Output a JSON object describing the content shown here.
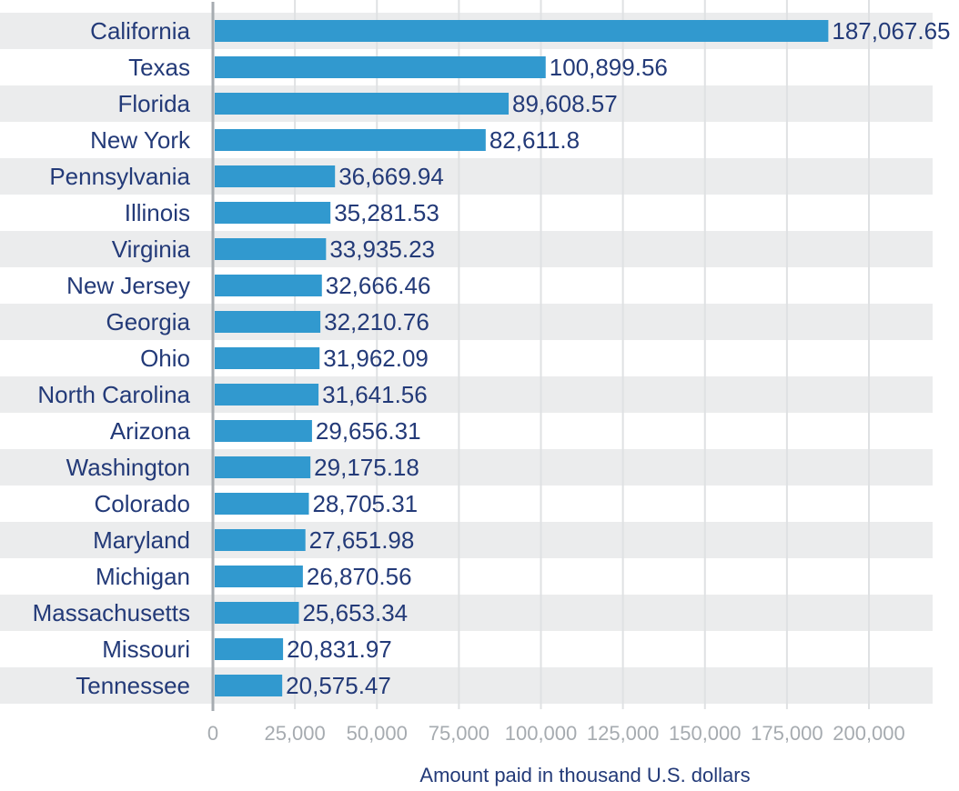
{
  "chart_data": {
    "type": "bar",
    "orientation": "horizontal",
    "title": "",
    "xlabel": "Amount paid in thousand U.S. dollars",
    "ylabel": "",
    "xlim": [
      0,
      220000
    ],
    "x_ticks": [
      0,
      25000,
      50000,
      75000,
      100000,
      125000,
      150000,
      175000,
      200000
    ],
    "x_tick_labels": [
      "0",
      "25,000",
      "50,000",
      "75,000",
      "100,000",
      "125,000",
      "150,000",
      "175,000",
      "200,000"
    ],
    "grid": true,
    "legend": "none",
    "categories": [
      "California",
      "Texas",
      "Florida",
      "New York",
      "Pennsylvania",
      "Illinois",
      "Virginia",
      "New Jersey",
      "Georgia",
      "Ohio",
      "North Carolina",
      "Arizona",
      "Washington",
      "Colorado",
      "Maryland",
      "Michigan",
      "Massachusetts",
      "Missouri",
      "Tennessee"
    ],
    "values": [
      187067.65,
      100899.56,
      89608.57,
      82611.8,
      36669.94,
      35281.53,
      33935.23,
      32666.46,
      32210.76,
      31962.09,
      31641.56,
      29656.31,
      29175.18,
      28705.31,
      27651.98,
      26870.56,
      25653.34,
      20831.97,
      20575.47
    ],
    "value_labels": [
      "187,067.65",
      "100,899.56",
      "89,608.57",
      "82,611.8",
      "36,669.94",
      "35,281.53",
      "33,935.23",
      "32,666.46",
      "32,210.76",
      "31,962.09",
      "31,641.56",
      "29,656.31",
      "29,175.18",
      "28,705.31",
      "27,651.98",
      "26,870.56",
      "25,653.34",
      "20,831.97",
      "20,575.47"
    ],
    "colors": {
      "bar": "#3199cf",
      "band": "#ebeced",
      "grid": "#dfe1e3",
      "axis": "#a6abb0",
      "text": "#233a78",
      "tick_text": "#a6abb0"
    }
  }
}
